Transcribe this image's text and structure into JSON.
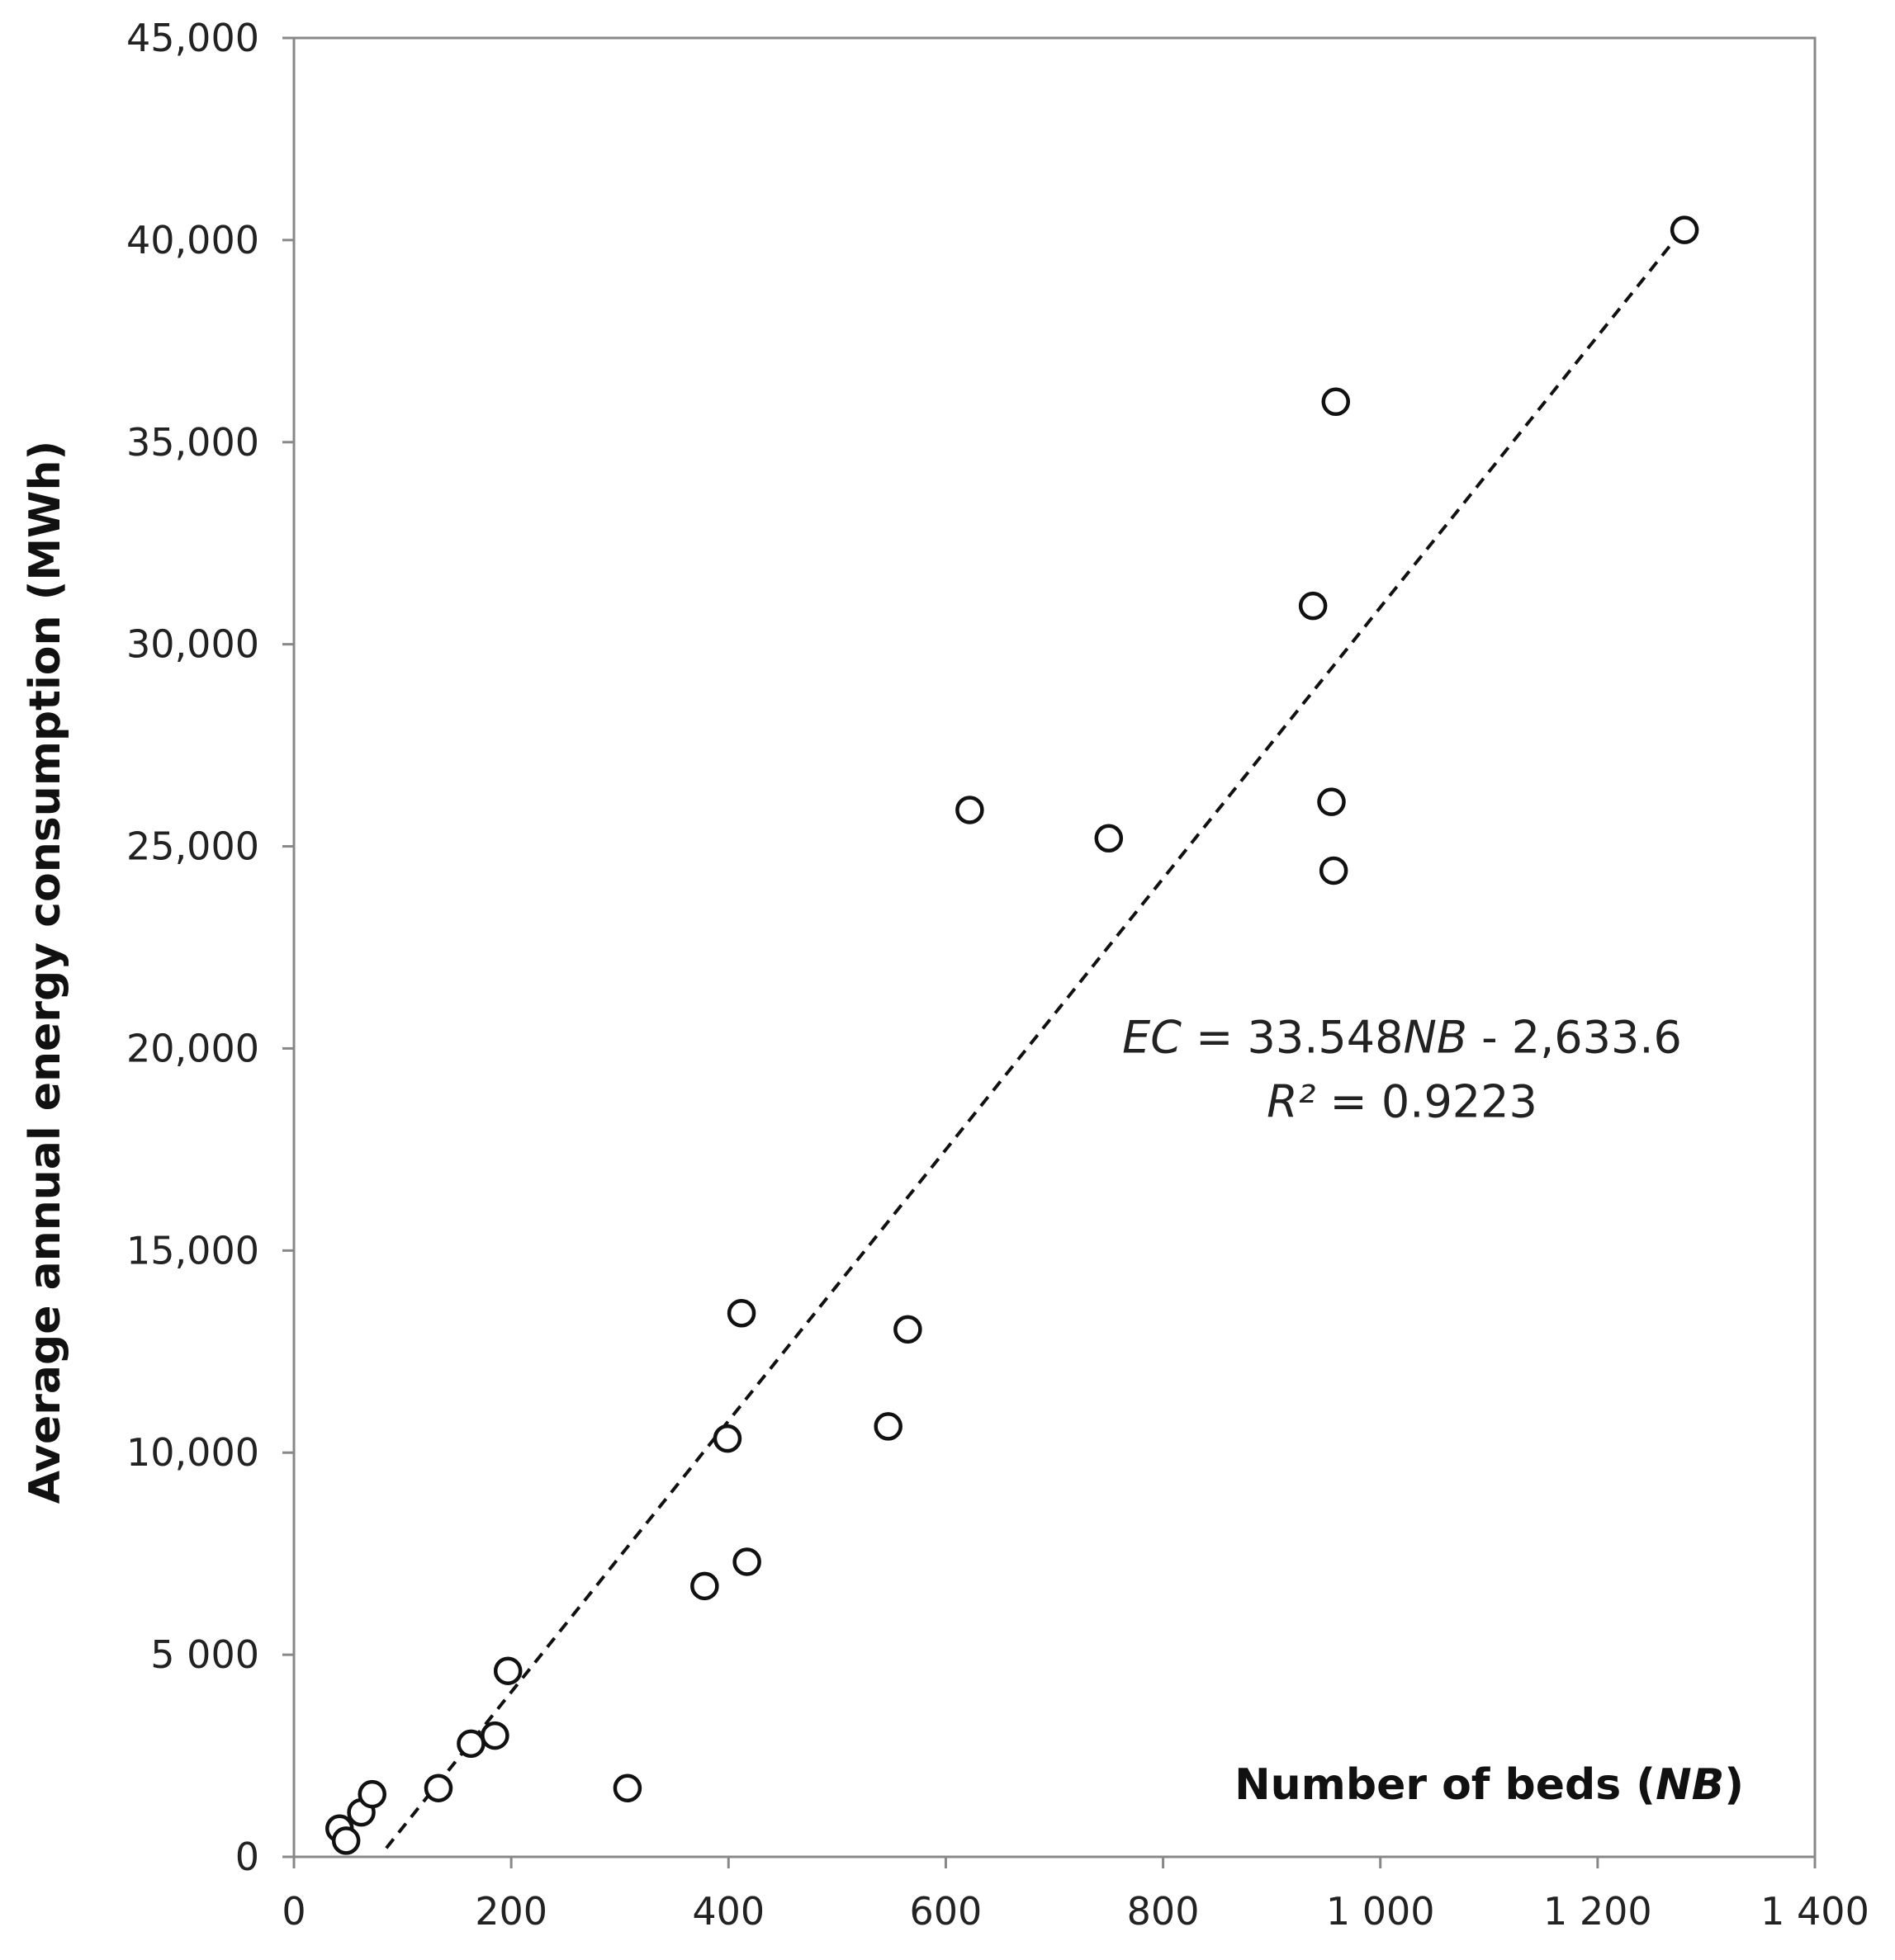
{
  "chart_data": {
    "type": "scatter",
    "xlabel_parts": [
      "Number of beds (",
      "NB",
      ")"
    ],
    "ylabel": "Average annual energy consumption  (MWh)",
    "xlim": [
      0,
      1400
    ],
    "ylim": [
      0,
      45000
    ],
    "x_ticks": [
      0,
      200,
      400,
      600,
      800,
      1000,
      1200,
      1400
    ],
    "x_tick_labels": [
      "0",
      "200",
      "400",
      "600",
      "800",
      "1 000",
      "1 200",
      "1 400"
    ],
    "y_ticks": [
      0,
      5000,
      10000,
      15000,
      20000,
      25000,
      30000,
      35000,
      40000,
      45000
    ],
    "y_tick_labels": [
      "0",
      "5 000",
      "10,000",
      "15,000",
      "20,000",
      "25,000",
      "30,000",
      "35,000",
      "40,000",
      "45,000"
    ],
    "grid": false,
    "points": [
      {
        "x": 42,
        "y": 700
      },
      {
        "x": 48,
        "y": 400
      },
      {
        "x": 62,
        "y": 1100
      },
      {
        "x": 72,
        "y": 1550
      },
      {
        "x": 133,
        "y": 1700
      },
      {
        "x": 163,
        "y": 2800
      },
      {
        "x": 185,
        "y": 3000
      },
      {
        "x": 197,
        "y": 4600
      },
      {
        "x": 307,
        "y": 1700
      },
      {
        "x": 378,
        "y": 6700
      },
      {
        "x": 399,
        "y": 10350
      },
      {
        "x": 412,
        "y": 13450
      },
      {
        "x": 417,
        "y": 7300
      },
      {
        "x": 547,
        "y": 10650
      },
      {
        "x": 565,
        "y": 13050
      },
      {
        "x": 622,
        "y": 25900
      },
      {
        "x": 750,
        "y": 25200
      },
      {
        "x": 938,
        "y": 30950
      },
      {
        "x": 955,
        "y": 26100
      },
      {
        "x": 957,
        "y": 24400
      },
      {
        "x": 959,
        "y": 36000
      },
      {
        "x": 1280,
        "y": 40250
      }
    ],
    "trendline": {
      "slope": 33.548,
      "intercept": -2633.6,
      "x_range": [
        85,
        1280
      ],
      "style": "dashed",
      "color": "#111111"
    },
    "annotation": {
      "equation_parts": [
        "EC",
        " = 33.548",
        "NB",
        " - 2,633.6"
      ],
      "r2_parts": [
        "R²",
        " = 0.9223"
      ]
    },
    "colors": {
      "marker_stroke": "#111111",
      "marker_fill": "#ffffff",
      "axis": "#888888"
    }
  }
}
